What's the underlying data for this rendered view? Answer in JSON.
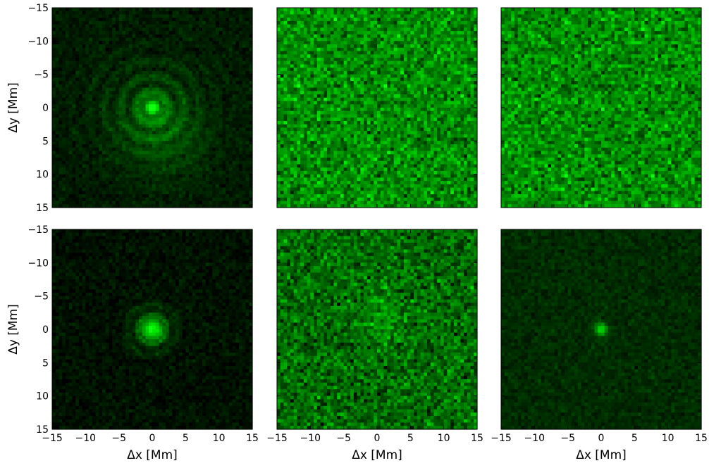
{
  "chart_data": [
    {
      "type": "heatmap",
      "pattern": "rings",
      "brightness": "dark",
      "xlabel": "",
      "ylabel": "Δy [Mm]",
      "xlim": [
        -15,
        15
      ],
      "ylim": [
        15,
        -15
      ],
      "xticks": [],
      "yticks": [
        "−15",
        "−10",
        "−5",
        "0",
        "5",
        "10",
        "15"
      ],
      "colormap": "black-to-green"
    },
    {
      "type": "heatmap",
      "pattern": "noise",
      "brightness": "bright",
      "xlabel": "",
      "ylabel": "",
      "xlim": [
        -15,
        15
      ],
      "ylim": [
        15,
        -15
      ],
      "xticks": [],
      "yticks": [],
      "colormap": "black-to-green"
    },
    {
      "type": "heatmap",
      "pattern": "noise",
      "brightness": "bright",
      "xlabel": "",
      "ylabel": "",
      "xlim": [
        -15,
        15
      ],
      "ylim": [
        15,
        -15
      ],
      "xticks": [],
      "yticks": [],
      "colormap": "black-to-green"
    },
    {
      "type": "heatmap",
      "pattern": "compact-rings",
      "brightness": "dark",
      "xlabel": "Δx [Mm]",
      "ylabel": "Δy [Mm]",
      "xlim": [
        -15,
        15
      ],
      "ylim": [
        15,
        -15
      ],
      "xticks": [
        "−15",
        "−10",
        "−5",
        "0",
        "5",
        "10",
        "15"
      ],
      "yticks": [
        "−15",
        "−10",
        "−5",
        "0",
        "5",
        "10",
        "15"
      ],
      "colormap": "black-to-green"
    },
    {
      "type": "heatmap",
      "pattern": "diffuse-blob",
      "brightness": "medium",
      "xlabel": "Δx [Mm]",
      "ylabel": "",
      "xlim": [
        -15,
        15
      ],
      "ylim": [
        15,
        -15
      ],
      "xticks": [
        "−15",
        "−10",
        "−5",
        "0",
        "5",
        "10",
        "15"
      ],
      "yticks": [],
      "colormap": "black-to-green"
    },
    {
      "type": "heatmap",
      "pattern": "spot",
      "brightness": "dark",
      "xlabel": "Δx [Mm]",
      "ylabel": "",
      "xlim": [
        -15,
        15
      ],
      "ylim": [
        15,
        -15
      ],
      "xticks": [
        "−15",
        "−10",
        "−5",
        "0",
        "5",
        "10",
        "15"
      ],
      "yticks": [],
      "colormap": "black-to-green"
    }
  ]
}
